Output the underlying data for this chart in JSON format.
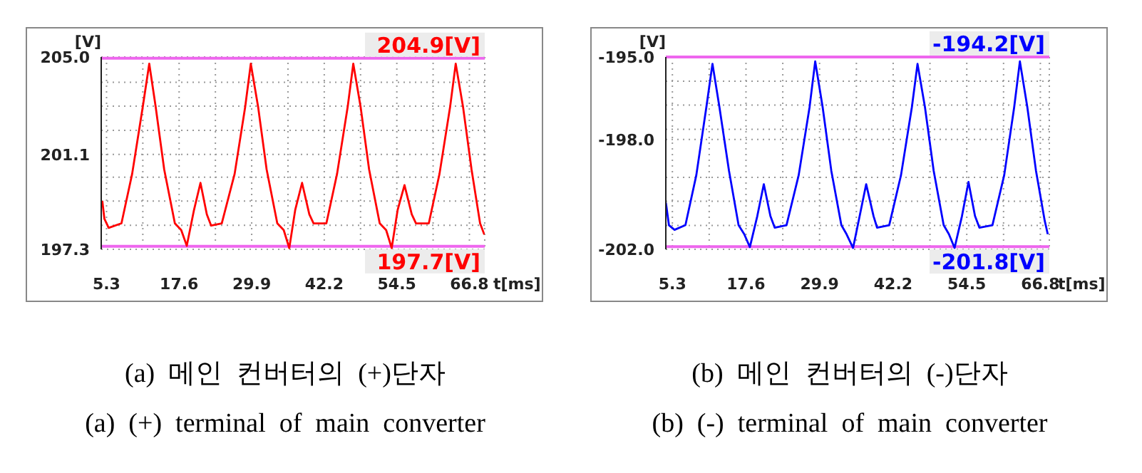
{
  "chart_data": [
    {
      "type": "line",
      "xlabel": "t[ms]",
      "ylabel": "[V]",
      "xlim": [
        4.4,
        69.4
      ],
      "xticks": [
        5.3,
        {
          "value": 11.45,
          "label": null
        },
        17.6,
        {
          "value": 23.75,
          "label": null
        },
        29.9,
        {
          "value": 36.05,
          "label": null
        },
        42.2,
        {
          "value": 48.35,
          "label": null
        },
        54.5,
        {
          "value": 60.65,
          "label": null
        },
        66.8
      ],
      "ylim": [
        197.3,
        205.0
      ],
      "yticks": [
        197.3,
        {
          "value": 198.26,
          "label": null
        },
        {
          "value": 199.23,
          "label": null
        },
        {
          "value": 200.19,
          "label": null
        },
        201.1,
        {
          "value": 202.06,
          "label": null
        },
        {
          "value": 203.03,
          "label": null
        },
        {
          "value": 203.99,
          "label": null
        },
        {
          "value": 205.0,
          "label": "205.0"
        }
      ],
      "grid": true,
      "series": [
        {
          "color": "#ff0000",
          "x": [
            4.58,
            4.94,
            5.66,
            7.83,
            9.64,
            11.45,
            12.54,
            13.62,
            15.07,
            16.88,
            17.96,
            18.9,
            20.13,
            21.22,
            22.3,
            23.03,
            24.83,
            27.01,
            28.81,
            29.75,
            30.98,
            32.43,
            34.24,
            35.33,
            36.27,
            37.28,
            38.44,
            39.67,
            40.39,
            42.56,
            44.37,
            46.18,
            47.12,
            48.35,
            49.8,
            51.6,
            52.69,
            53.63,
            54.64,
            55.8,
            57.03,
            57.75,
            59.92,
            61.73,
            63.54,
            64.48,
            65.71,
            67.16,
            68.61,
            69.33
          ],
          "values": [
            199.24,
            198.52,
            198.16,
            198.34,
            200.32,
            203.02,
            204.73,
            203.02,
            200.5,
            198.34,
            198.07,
            197.44,
            198.88,
            199.96,
            198.7,
            198.25,
            198.34,
            200.32,
            203.02,
            204.73,
            203.02,
            200.5,
            198.34,
            198.07,
            197.35,
            198.88,
            199.96,
            198.7,
            198.34,
            198.34,
            200.32,
            203.02,
            204.73,
            203.02,
            200.5,
            198.34,
            198.07,
            197.35,
            198.88,
            199.87,
            198.7,
            198.34,
            198.34,
            200.32,
            203.02,
            204.73,
            203.02,
            200.5,
            198.34,
            197.89
          ]
        }
      ],
      "ref_lines": [
        {
          "axis": "y",
          "value": 204.95,
          "label": "204.9[V]",
          "color": "#ee66ee"
        },
        {
          "axis": "y",
          "value": 197.42,
          "label": "197.7[V]",
          "color": "#ee66ee"
        }
      ],
      "annotations": [
        "(a)  메인  컨버터의  (+)단자",
        "(a)  (+)  terminal  of  main  converter"
      ]
    },
    {
      "type": "line",
      "xlabel": "t[ms]",
      "ylabel": "[V]",
      "xlim": [
        4.2,
        68.3
      ],
      "xticks": [
        5.3,
        {
          "value": 11.45,
          "label": null
        },
        17.6,
        {
          "value": 23.75,
          "label": null
        },
        29.9,
        {
          "value": 36.05,
          "label": null
        },
        42.2,
        {
          "value": 48.35,
          "label": null
        },
        54.5,
        {
          "value": 60.65,
          "label": null
        },
        66.8
      ],
      "ylim": [
        -202.0,
        -195.0
      ],
      "yticks": [
        {
          "value": -202.0,
          "label": "-202.0"
        },
        {
          "value": -201.13,
          "label": null
        },
        {
          "value": -200.25,
          "label": null
        },
        {
          "value": -199.38,
          "label": null
        },
        {
          "value": -198.0,
          "label": "-198.0"
        },
        {
          "value": -197.63,
          "label": null
        },
        {
          "value": -196.75,
          "label": null
        },
        {
          "value": -195.88,
          "label": null
        },
        {
          "value": -195.0,
          "label": "-195.0"
        }
      ],
      "grid": true,
      "series": [
        {
          "color": "#0000ff",
          "x": [
            4.21,
            4.72,
            5.66,
            7.48,
            9.3,
            10.98,
            12.0,
            13.16,
            14.76,
            16.36,
            17.31,
            18.25,
            19.49,
            20.58,
            21.68,
            22.4,
            24.37,
            26.41,
            28.23,
            29.17,
            30.41,
            31.86,
            33.54,
            34.41,
            35.5,
            36.6,
            37.69,
            38.92,
            39.51,
            41.54,
            43.51,
            45.33,
            46.27,
            47.51,
            48.97,
            50.64,
            51.52,
            52.46,
            53.7,
            54.79,
            55.88,
            56.61,
            58.79,
            60.76,
            62.43,
            63.38,
            64.62,
            66.07,
            67.53,
            68.04
          ],
          "values": [
            -200.3,
            -201.12,
            -201.29,
            -201.12,
            -199.3,
            -196.82,
            -195.25,
            -196.82,
            -199.14,
            -201.12,
            -201.45,
            -201.92,
            -200.79,
            -199.63,
            -200.79,
            -201.21,
            -201.12,
            -199.3,
            -196.82,
            -195.16,
            -196.82,
            -199.14,
            -201.12,
            -201.45,
            -201.95,
            -200.79,
            -199.63,
            -200.79,
            -201.21,
            -201.12,
            -199.3,
            -196.82,
            -195.25,
            -196.82,
            -199.14,
            -201.12,
            -201.45,
            -201.95,
            -200.79,
            -199.55,
            -200.79,
            -201.21,
            -201.12,
            -199.3,
            -196.82,
            -195.16,
            -196.82,
            -199.14,
            -200.96,
            -201.45
          ]
        }
      ],
      "ref_lines": [
        {
          "axis": "y",
          "value": -195.0,
          "label": "-194.2[V]",
          "color": "#ee66ee"
        },
        {
          "axis": "y",
          "value": -201.9,
          "label": "-201.8[V]",
          "color": "#ee66ee"
        }
      ],
      "annotations": [
        "(b)  메인  컨버터의  (-)단자",
        "(b)  (-)  terminal  of  main  converter"
      ]
    }
  ]
}
